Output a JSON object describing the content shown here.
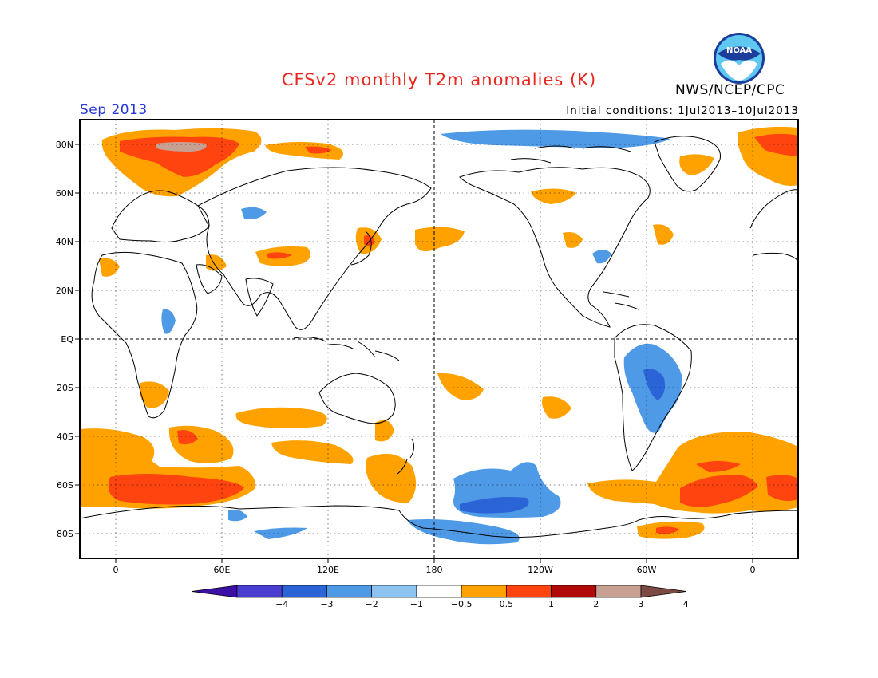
{
  "header": {
    "title": "CFSv2 monthly T2m anomalies (K)",
    "agency": "NWS/NCEP/CPC",
    "logo_text": "NOAA",
    "valid_month": "Sep 2013",
    "initial_conditions": "Initial conditions: 1Jul2013–10Jul2013"
  },
  "map": {
    "projection": "cylindrical equidistant",
    "lon_labels": [
      "0",
      "60E",
      "120E",
      "180",
      "120W",
      "60W",
      "0"
    ],
    "lat_labels": [
      "80N",
      "60N",
      "40N",
      "20N",
      "EQ",
      "20S",
      "40S",
      "60S",
      "80S"
    ],
    "reference_lines": [
      "equator",
      "dateline"
    ]
  },
  "colorbar": {
    "tick_labels": [
      "−4",
      "−3",
      "−2",
      "−1",
      "−0.5",
      "0.5",
      "1",
      "2",
      "3",
      "4"
    ],
    "colors": [
      "#3c0fa6",
      "#4a3ed1",
      "#2a64d6",
      "#4f9ae6",
      "#8cc3f0",
      "#ffffff",
      "#ffa200",
      "#ff4410",
      "#b10a0a",
      "#c7a092",
      "#7c4a42"
    ]
  },
  "anomalies": {
    "warm_regions": [
      "Greenland",
      "Arctic Europe",
      "Southern Ocean",
      "Japan",
      "Western China",
      "South Pacific"
    ],
    "cool_regions": [
      "South America",
      "Arctic north of Pacific",
      "Antarctic Pacific sector",
      "East Africa"
    ]
  }
}
